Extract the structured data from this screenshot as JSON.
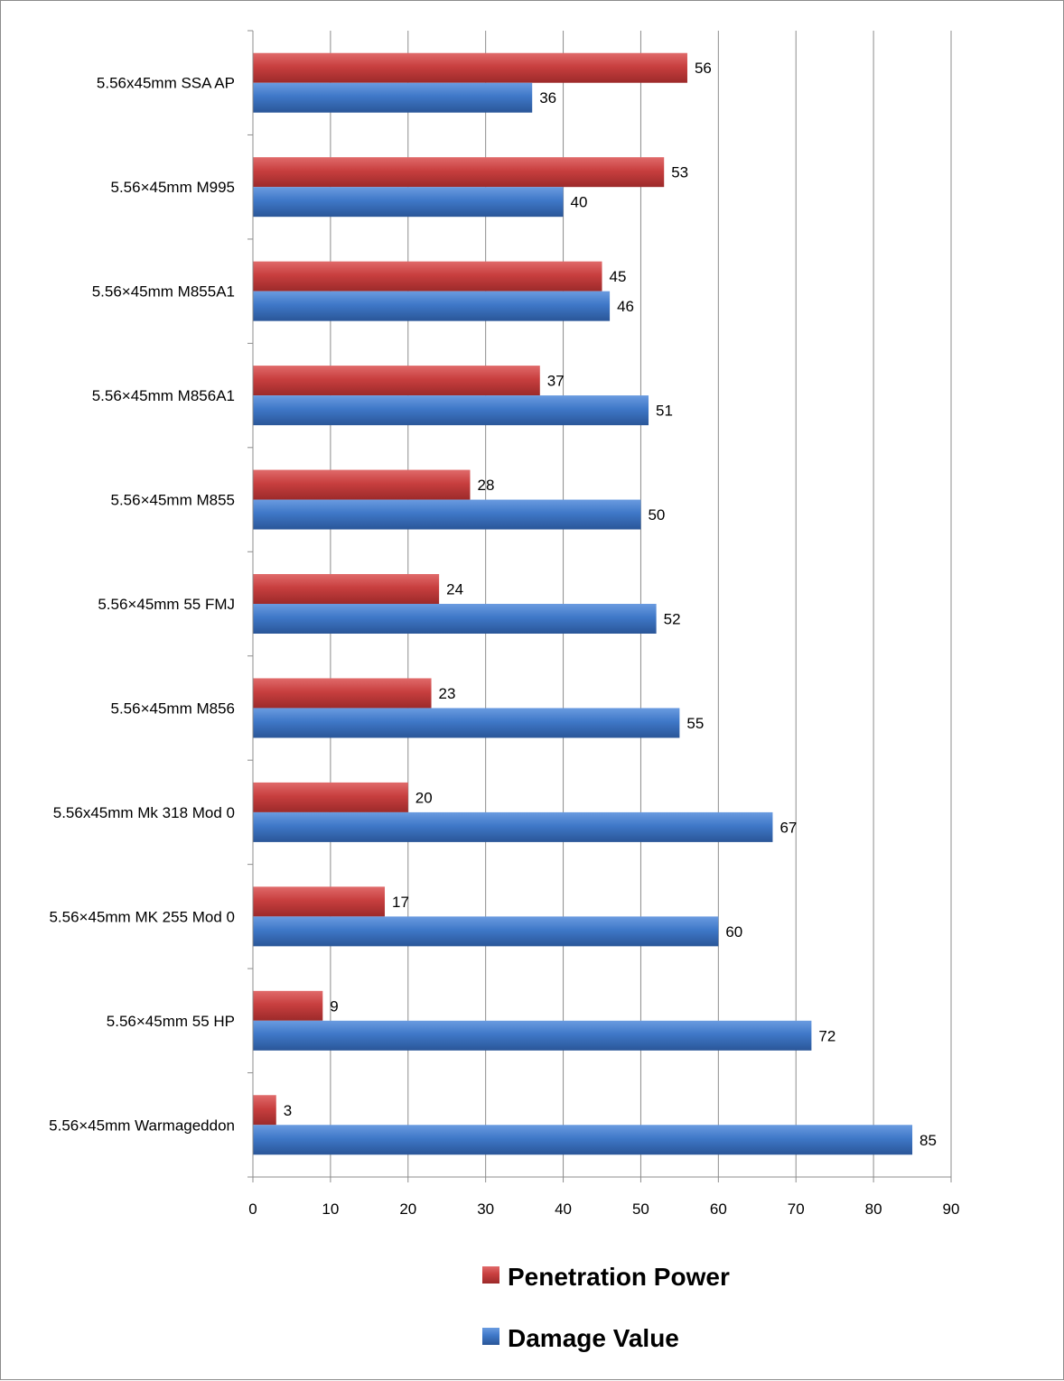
{
  "chart_data": {
    "type": "bar",
    "orientation": "horizontal",
    "categories": [
      "5.56x45mm SSA AP",
      "5.56×45mm M995",
      "5.56×45mm M855A1",
      "5.56×45mm M856A1",
      "5.56×45mm M855",
      "5.56×45mm 55 FMJ",
      "5.56×45mm M856",
      "5.56x45mm Mk 318 Mod 0",
      "5.56×45mm MK 255 Mod 0",
      "5.56×45mm 55 HP",
      "5.56×45mm Warmageddon"
    ],
    "series": [
      {
        "name": "Penetration Power",
        "color": "#c0393a",
        "values": [
          56,
          53,
          45,
          37,
          28,
          24,
          23,
          20,
          17,
          9,
          3
        ]
      },
      {
        "name": "Damage Value",
        "color": "#3a74c1",
        "values": [
          36,
          40,
          46,
          51,
          50,
          52,
          55,
          67,
          60,
          72,
          85
        ]
      }
    ],
    "xlim": [
      0,
      90
    ],
    "xticks": [
      0,
      10,
      20,
      30,
      40,
      50,
      60,
      70,
      80,
      90
    ],
    "grid": "vertical",
    "legend_position": "bottom",
    "data_labels": true
  }
}
